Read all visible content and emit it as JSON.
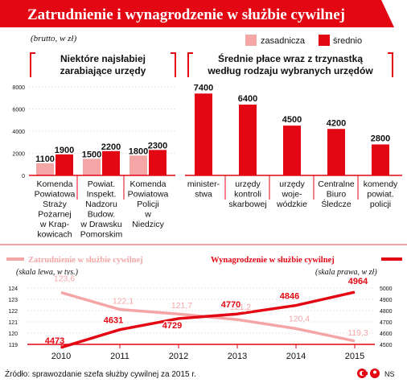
{
  "header": {
    "title": "Zatrudnienie i wynagrodzenie w służbie cywilnej"
  },
  "unit_note": "(brutto, w zł)",
  "legend": {
    "series_a": "zasadnicza",
    "series_b": "średnio"
  },
  "colors": {
    "red": "#e30613",
    "pink": "#f4a6a6",
    "grid": "#cfcfcf",
    "text": "#111111"
  },
  "chart_data": [
    {
      "type": "bar",
      "title": "Niektóre najsłabiej zarabiające urzędy",
      "categories": [
        [
          "Komenda",
          "Powiatowa",
          "Straży",
          "Pożarnej",
          "w Krap-",
          "kowicach"
        ],
        [
          "Powiat.",
          "Inspekt.",
          "Nadzoru",
          "Budow.",
          "w Drawsku",
          "Pomorskim"
        ],
        [
          "Komenda",
          "Powiatowa",
          "Policji",
          "w",
          "Niedzicy"
        ]
      ],
      "series": [
        {
          "name": "zasadnicza",
          "values": [
            1100,
            1500,
            1800
          ]
        },
        {
          "name": "średnio",
          "values": [
            1900,
            2200,
            2300
          ]
        }
      ],
      "ylim": [
        0,
        8000
      ],
      "yticks": [
        0,
        2000,
        4000,
        6000,
        8000
      ]
    },
    {
      "type": "bar",
      "title": "Średnie płace wraz z trzynastką według rodzaju wybranych urzędów",
      "categories": [
        [
          "minister-",
          "stwa"
        ],
        [
          "urzędy",
          "kontroli",
          "skarbowej"
        ],
        [
          "urzędy",
          "woje-",
          "wódzkie"
        ],
        [
          "Centralne",
          "Biuro",
          "Śledcze"
        ],
        [
          "komendy",
          "powiat.",
          "policji"
        ]
      ],
      "series": [
        {
          "name": "średnio",
          "values": [
            7400,
            6400,
            4500,
            4200,
            2800
          ]
        }
      ],
      "ylim": [
        0,
        8000
      ]
    },
    {
      "type": "line",
      "x": [
        "2010",
        "2011",
        "2012",
        "2013",
        "2014",
        "2015"
      ],
      "series": [
        {
          "name": "Zatrudnienie w służbie cywilnej",
          "axis_note": "(skala lewa, w tys.)",
          "values": [
            123.6,
            122.1,
            121.7,
            121.2,
            120.4,
            119.3
          ],
          "value_labels": [
            "123,6",
            "122,1",
            "121,7",
            "121,2",
            "120,4",
            "119,3"
          ],
          "ylim": [
            119,
            124
          ],
          "yticks": [
            119,
            120,
            121,
            122,
            123,
            124
          ]
        },
        {
          "name": "Wynagrodzenie w służbie cywilnej",
          "axis_note": "(skala prawa, w zł)",
          "values": [
            4473,
            4631,
            4729,
            4770,
            4846,
            4964
          ],
          "value_labels": [
            "4473",
            "4631",
            "4729",
            "4770",
            "4846",
            "4964"
          ],
          "ylim": [
            4500,
            5000
          ],
          "yticks": [
            4500,
            4600,
            4700,
            4800,
            4900,
            5000
          ]
        }
      ]
    }
  ],
  "footer": {
    "source": "Źródło: sprawozdanie szefa służby cywilnej za 2015 r.",
    "credit": "NS"
  }
}
